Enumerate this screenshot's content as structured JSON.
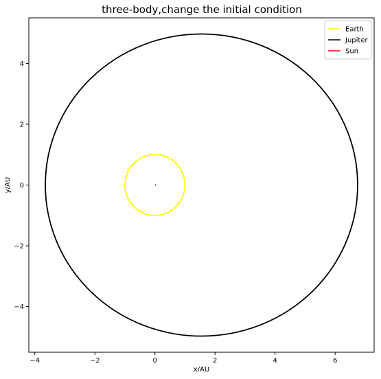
{
  "chart_data": {
    "type": "line",
    "title": "three-body,change the initial condition",
    "xlabel": "x/AU",
    "ylabel": "y/AU",
    "xlim": [
      -4.2,
      7.3
    ],
    "ylim": [
      -5.5,
      5.5
    ],
    "xticks": [
      -4,
      -2,
      0,
      2,
      4,
      6
    ],
    "yticks": [
      -4,
      -2,
      0,
      2,
      4
    ],
    "xtick_labels": [
      "−4",
      "−2",
      "0",
      "2",
      "4",
      "6"
    ],
    "ytick_labels": [
      "−4",
      "−2",
      "0",
      "2",
      "4"
    ],
    "grid": false,
    "legend_position": "top-right",
    "series": [
      {
        "name": "Earth",
        "color": "#ffff00",
        "shape": "ellipse",
        "center": [
          0.0,
          0.0
        ],
        "radius_x": 1.0,
        "radius_y": 1.0
      },
      {
        "name": "Jupiter",
        "color": "#000000",
        "shape": "ellipse",
        "center": [
          1.55,
          0.0
        ],
        "radius_x": 5.2,
        "radius_y": 4.97
      },
      {
        "name": "Sun",
        "color": "#ff0000",
        "shape": "segment",
        "x": [
          0.0,
          0.03
        ],
        "y": [
          0.0,
          0.0
        ]
      }
    ]
  }
}
